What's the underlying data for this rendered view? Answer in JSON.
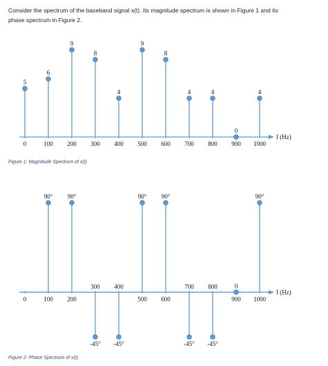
{
  "text_lines": [
    "Consider the spectrum of the baseband signal x(t).  Its magnitude spectrum is shown in Figure 1 and its",
    "phase spectrum in Figure 2."
  ],
  "chart_data": [
    {
      "type": "stem",
      "x_label": "f (Hz)",
      "caption": "Figure 1: Magnitude Spectrum of x(t)",
      "x": [
        0,
        100,
        200,
        300,
        400,
        500,
        600,
        700,
        800,
        900,
        1000
      ],
      "values": [
        5,
        6,
        9,
        8,
        4,
        9,
        8,
        4,
        4,
        0,
        4
      ],
      "color": "#5b9bd5",
      "xlim": [
        0,
        1000
      ],
      "xticks": [
        0,
        100,
        200,
        300,
        400,
        500,
        600,
        700,
        800,
        900,
        1000
      ],
      "ylim": [
        0,
        10
      ]
    },
    {
      "type": "stem",
      "x_label": "f (Hz)",
      "caption": "Figure 2: Phase Spectrum of x(t)",
      "x": [
        100,
        200,
        300,
        400,
        500,
        600,
        700,
        800,
        900,
        1000
      ],
      "values": [
        90,
        90,
        -45,
        -45,
        90,
        90,
        -45,
        -45,
        0,
        90
      ],
      "value_labels": [
        "90°",
        "90°",
        "-45°",
        "-45°",
        "90°",
        "90°",
        "-45°",
        "-45°",
        "0",
        "90°"
      ],
      "color": "#5b9bd5",
      "xlim": [
        0,
        1000
      ],
      "xticks": [
        0,
        100,
        200,
        300,
        400,
        500,
        600,
        700,
        800,
        900,
        1000
      ],
      "ylim": [
        -45,
        90
      ]
    }
  ]
}
